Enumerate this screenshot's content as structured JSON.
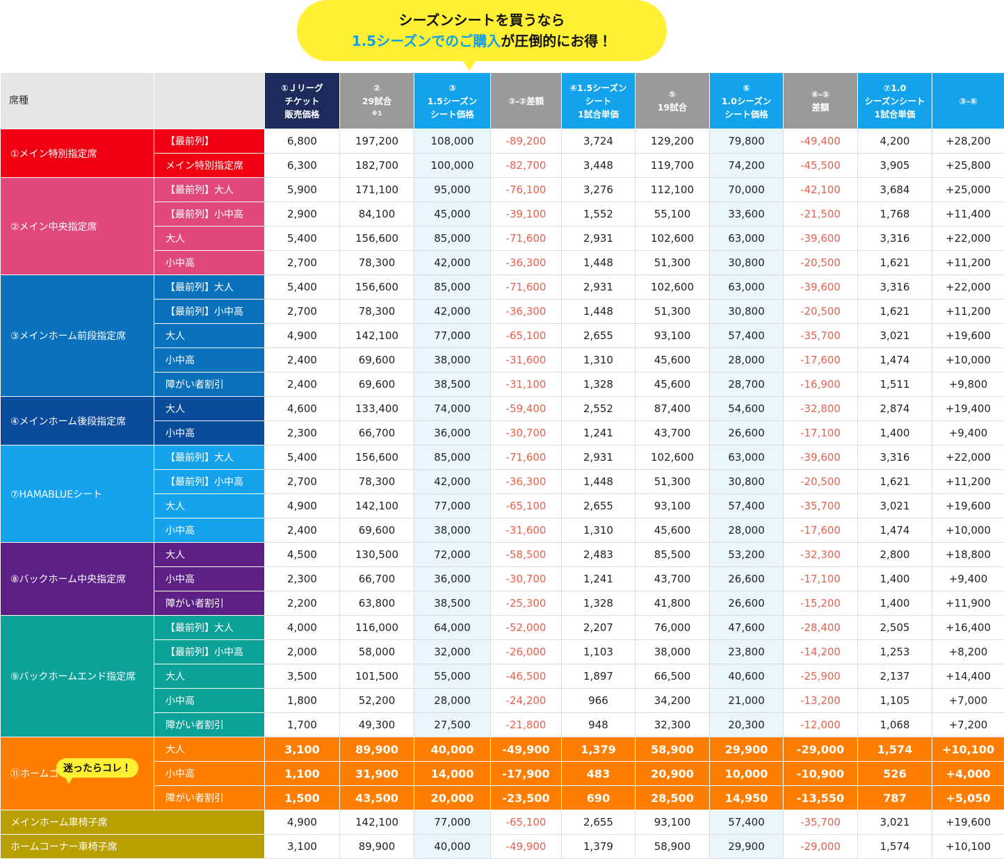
{
  "callout": {
    "line1": "シーズンシートを買うなら",
    "line2_highlight": "1.5シーズンでのご購入",
    "line2_rest": "が圧倒的にお得！"
  },
  "table": {
    "header": {
      "seat": "席種",
      "columns": [
        {
          "lines": [
            "①Ｊリーグ",
            "チケット",
            "販売価格"
          ],
          "style": "navy"
        },
        {
          "lines": [
            "②",
            "29試合",
            "※1"
          ],
          "style": "gray"
        },
        {
          "lines": [
            "③",
            "1.5シーズン",
            "シート価格"
          ],
          "style": "blue"
        },
        {
          "lines": [
            "③-②差額"
          ],
          "style": "gray"
        },
        {
          "lines": [
            "④1.5シーズン",
            "シート",
            "1試合単価"
          ],
          "style": "blue"
        },
        {
          "lines": [
            "⑤",
            "19試合"
          ],
          "style": "gray"
        },
        {
          "lines": [
            "⑥",
            "1.0シーズン",
            "シート価格"
          ],
          "style": "blue"
        },
        {
          "lines": [
            "⑥-⑤",
            "差額"
          ],
          "style": "gray"
        },
        {
          "lines": [
            "⑦1.0",
            "シーズンシート",
            "1試合単価"
          ],
          "style": "blue"
        },
        {
          "lines": [
            "③-⑥"
          ],
          "style": "blue"
        }
      ]
    },
    "groups": [
      {
        "name": "①メイン特別指定席",
        "color": "#f00012",
        "rows": [
          {
            "label": "【最前列】",
            "cells": [
              "6,800",
              "197,200",
              "108,000",
              "-89,200",
              "3,724",
              "129,200",
              "79,800",
              "-49,400",
              "4,200",
              "+28,200"
            ]
          },
          {
            "label": "メイン特別指定席",
            "cells": [
              "6,300",
              "182,700",
              "100,000",
              "-82,700",
              "3,448",
              "119,700",
              "74,200",
              "-45,500",
              "3,905",
              "+25,800"
            ]
          }
        ]
      },
      {
        "name": "②メイン中央指定席",
        "color": "#e1497d",
        "rows": [
          {
            "label": "【最前列】大人",
            "cells": [
              "5,900",
              "171,100",
              "95,000",
              "-76,100",
              "3,276",
              "112,100",
              "70,000",
              "-42,100",
              "3,684",
              "+25,000"
            ]
          },
          {
            "label": "【最前列】小中高",
            "cells": [
              "2,900",
              "84,100",
              "45,000",
              "-39,100",
              "1,552",
              "55,100",
              "33,600",
              "-21,500",
              "1,768",
              "+11,400"
            ]
          },
          {
            "label": "大人",
            "cells": [
              "5,400",
              "156,600",
              "85,000",
              "-71,600",
              "2,931",
              "102,600",
              "63,000",
              "-39,600",
              "3,316",
              "+22,000"
            ]
          },
          {
            "label": "小中高",
            "cells": [
              "2,700",
              "78,300",
              "42,000",
              "-36,300",
              "1,448",
              "51,300",
              "30,800",
              "-20,500",
              "1,621",
              "+11,200"
            ]
          }
        ]
      },
      {
        "name": "③メインホーム前段指定席",
        "color": "#0a72bd",
        "rows": [
          {
            "label": "【最前列】大人",
            "cells": [
              "5,400",
              "156,600",
              "85,000",
              "-71,600",
              "2,931",
              "102,600",
              "63,000",
              "-39,600",
              "3,316",
              "+22,000"
            ]
          },
          {
            "label": "【最前列】小中高",
            "cells": [
              "2,700",
              "78,300",
              "42,000",
              "-36,300",
              "1,448",
              "51,300",
              "30,800",
              "-20,500",
              "1,621",
              "+11,200"
            ]
          },
          {
            "label": "大人",
            "cells": [
              "4,900",
              "142,100",
              "77,000",
              "-65,100",
              "2,655",
              "93,100",
              "57,400",
              "-35,700",
              "3,021",
              "+19,600"
            ]
          },
          {
            "label": "小中高",
            "cells": [
              "2,400",
              "69,600",
              "38,000",
              "-31,600",
              "1,310",
              "45,600",
              "28,000",
              "-17,600",
              "1,474",
              "+10,000"
            ]
          },
          {
            "label": "障がい者割引",
            "cells": [
              "2,400",
              "69,600",
              "38,500",
              "-31,100",
              "1,328",
              "45,600",
              "28,700",
              "-16,900",
              "1,511",
              "+9,800"
            ]
          }
        ]
      },
      {
        "name": "④メインホーム後段指定席",
        "color": "#0a4b9c",
        "rows": [
          {
            "label": "大人",
            "cells": [
              "4,600",
              "133,400",
              "74,000",
              "-59,400",
              "2,552",
              "87,400",
              "54,600",
              "-32,800",
              "2,874",
              "+19,400"
            ]
          },
          {
            "label": "小中高",
            "cells": [
              "2,300",
              "66,700",
              "36,000",
              "-30,700",
              "1,241",
              "43,700",
              "26,600",
              "-17,100",
              "1,400",
              "+9,400"
            ]
          }
        ]
      },
      {
        "name": "⑦HAMABLUEシート",
        "color": "#14a3ec",
        "rows": [
          {
            "label": "【最前列】大人",
            "cells": [
              "5,400",
              "156,600",
              "85,000",
              "-71,600",
              "2,931",
              "102,600",
              "63,000",
              "-39,600",
              "3,316",
              "+22,000"
            ]
          },
          {
            "label": "【最前列】小中高",
            "cells": [
              "2,700",
              "78,300",
              "42,000",
              "-36,300",
              "1,448",
              "51,300",
              "30,800",
              "-20,500",
              "1,621",
              "+11,200"
            ]
          },
          {
            "label": "大人",
            "cells": [
              "4,900",
              "142,100",
              "77,000",
              "-65,100",
              "2,655",
              "93,100",
              "57,400",
              "-35,700",
              "3,021",
              "+19,600"
            ]
          },
          {
            "label": "小中高",
            "cells": [
              "2,400",
              "69,600",
              "38,000",
              "-31,600",
              "1,310",
              "45,600",
              "28,000",
              "-17,600",
              "1,474",
              "+10,000"
            ]
          }
        ]
      },
      {
        "name": "⑧バックホーム中央指定席",
        "color": "#5b1f85",
        "rows": [
          {
            "label": "大人",
            "cells": [
              "4,500",
              "130,500",
              "72,000",
              "-58,500",
              "2,483",
              "85,500",
              "53,200",
              "-32,300",
              "2,800",
              "+18,800"
            ]
          },
          {
            "label": "小中高",
            "cells": [
              "2,300",
              "66,700",
              "36,000",
              "-30,700",
              "1,241",
              "43,700",
              "26,600",
              "-17,100",
              "1,400",
              "+9,400"
            ]
          },
          {
            "label": "障がい者割引",
            "cells": [
              "2,200",
              "63,800",
              "38,500",
              "-25,300",
              "1,328",
              "41,800",
              "26,600",
              "-15,200",
              "1,400",
              "+11,900"
            ]
          }
        ]
      },
      {
        "name": "⑨バックホームエンド指定席",
        "color": "#0ca299",
        "rows": [
          {
            "label": "【最前列】大人",
            "cells": [
              "4,000",
              "116,000",
              "64,000",
              "-52,000",
              "2,207",
              "76,000",
              "47,600",
              "-28,400",
              "2,505",
              "+16,400"
            ]
          },
          {
            "label": "【最前列】小中高",
            "cells": [
              "2,000",
              "58,000",
              "32,000",
              "-26,000",
              "1,103",
              "38,000",
              "23,800",
              "-14,200",
              "1,253",
              "+8,200"
            ]
          },
          {
            "label": "大人",
            "cells": [
              "3,500",
              "101,500",
              "55,000",
              "-46,500",
              "1,897",
              "66,500",
              "40,600",
              "-25,900",
              "2,137",
              "+14,400"
            ]
          },
          {
            "label": "小中高",
            "cells": [
              "1,800",
              "52,200",
              "28,000",
              "-24,200",
              "966",
              "34,200",
              "21,000",
              "-13,200",
              "1,105",
              "+7,000"
            ]
          },
          {
            "label": "障がい者割引",
            "cells": [
              "1,700",
              "49,300",
              "27,500",
              "-21,800",
              "948",
              "32,300",
              "20,300",
              "-12,000",
              "1,068",
              "+7,200"
            ]
          }
        ]
      },
      {
        "name": "⑪ホームゴール裏指定席",
        "color": "#ff7e00",
        "badge": "迷ったらコレ！",
        "emphasis": true,
        "rows": [
          {
            "label": "大人",
            "cells": [
              "3,100",
              "89,900",
              "40,000",
              "-49,900",
              "1,379",
              "58,900",
              "29,900",
              "-29,000",
              "1,574",
              "+10,100"
            ]
          },
          {
            "label": "小中高",
            "cells": [
              "1,100",
              "31,900",
              "14,000",
              "-17,900",
              "483",
              "20,900",
              "10,000",
              "-10,900",
              "526",
              "+4,000"
            ]
          },
          {
            "label": "障がい者割引",
            "cells": [
              "1,500",
              "43,500",
              "20,000",
              "-23,500",
              "690",
              "28,500",
              "14,950",
              "-13,550",
              "787",
              "+5,050"
            ]
          }
        ]
      },
      {
        "name": "メインホーム車椅子席",
        "color": "#b9a000",
        "rows": [
          {
            "cells": [
              "4,900",
              "142,100",
              "77,000",
              "-65,100",
              "2,655",
              "93,100",
              "57,400",
              "-35,700",
              "3,021",
              "+19,600"
            ]
          }
        ]
      },
      {
        "name": "ホームコーナー車椅子席",
        "color": "#b9a000",
        "rows": [
          {
            "cells": [
              "3,100",
              "89,900",
              "40,000",
              "-49,900",
              "1,379",
              "58,900",
              "29,900",
              "-29,000",
              "1,574",
              "+10,100"
            ]
          }
        ]
      }
    ]
  }
}
